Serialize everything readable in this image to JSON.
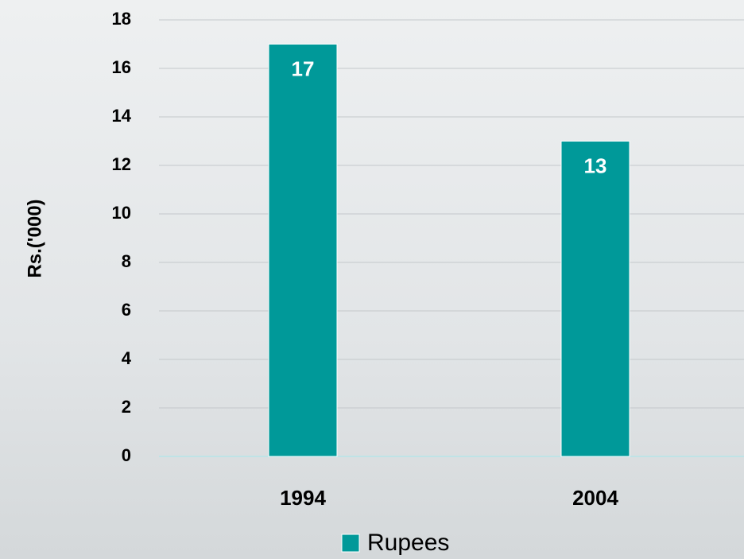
{
  "chart_data": {
    "type": "bar",
    "y_label": "Rs.('000)",
    "categories": [
      "1994",
      "2004"
    ],
    "series": [
      {
        "name": "Rupees",
        "color": "#009999",
        "values": [
          17,
          13
        ]
      }
    ],
    "ylim": [
      0,
      18
    ],
    "yticks": [
      0,
      2,
      4,
      6,
      8,
      10,
      12,
      14,
      16,
      18
    ],
    "grid": true
  }
}
